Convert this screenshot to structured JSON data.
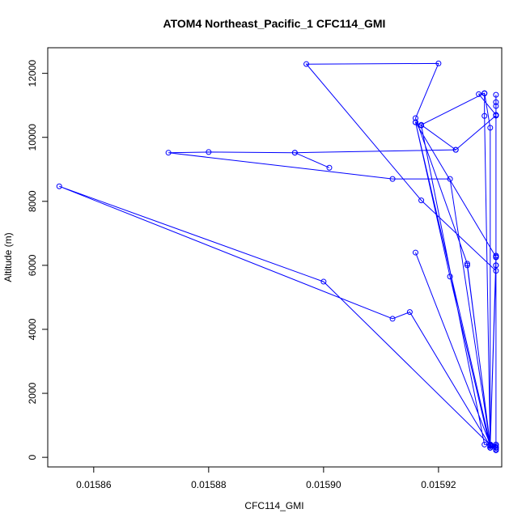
{
  "chart_data": {
    "type": "line",
    "title": "ATOM4 Northeast_Pacific_1 CFC114_GMI",
    "xlabel": "CFC114_GMI",
    "ylabel": "Altitude (m)",
    "xlim": [
      0.015852,
      0.015931
    ],
    "ylim": [
      -300,
      12800
    ],
    "x_ticks": [
      0.01586,
      0.01588,
      0.0159,
      0.01592
    ],
    "x_tick_labels": [
      "0.01586",
      "0.01588",
      "0.01590",
      "0.01592"
    ],
    "y_ticks": [
      0,
      2000,
      4000,
      6000,
      8000,
      10000,
      12000
    ],
    "y_tick_labels": [
      "0",
      "2000",
      "4000",
      "6000",
      "8000",
      "10000",
      "12000"
    ],
    "grid": false,
    "legend": "none",
    "color": "#0000ff",
    "marker": "open-circle",
    "series": [
      {
        "x": [
          0.01593,
          0.01593,
          0.015929,
          0.015915,
          0.015912,
          0.015854,
          0.0159,
          0.015929,
          0.01593,
          0.01593,
          0.015917,
          0.015897,
          0.01592,
          0.015916,
          0.015925,
          0.015929,
          0.01593,
          0.015929,
          0.015929,
          0.015922,
          0.015916,
          0.01593,
          0.01593,
          0.015929,
          0.015916,
          0.015929,
          0.015929,
          0.015928,
          0.015917,
          0.015923,
          0.01593,
          0.01593,
          0.01593,
          0.01593,
          0.01593,
          0.01593,
          0.01593,
          0.01593,
          0.01593,
          0.01593,
          0.01593,
          0.01593,
          0.015929,
          0.015928,
          0.015928,
          0.015927,
          0.01593,
          0.01593,
          0.01593,
          0.015929,
          0.015929,
          0.015925,
          0.015929,
          0.015929,
          0.015928,
          0.015917,
          0.015916,
          0.015929,
          0.015929,
          0.01593,
          0.015929,
          0.015922,
          0.015912,
          0.015873,
          0.01588,
          0.015895,
          0.015923,
          0.015895,
          0.015901
        ],
        "y": [
          220,
          250,
          350,
          4540,
          4330,
          8470,
          5490,
          380,
          6250,
          5830,
          8030,
          12290,
          12310,
          10600,
          6050,
          350,
          350,
          300,
          300,
          5650,
          10470,
          6260,
          6000,
          400,
          6400,
          400,
          10300,
          11380,
          10390,
          9610,
          10680,
          10980,
          11330,
          11100,
          10700,
          10680,
          6300,
          300,
          300,
          300,
          300,
          400,
          300,
          10670,
          11370,
          11350,
          10700,
          6300,
          6000,
          400,
          400,
          6000,
          400,
          400,
          400,
          10370,
          10470,
          400,
          300,
          400,
          400,
          8700,
          8700,
          9520,
          9540,
          9520,
          9610,
          9520,
          9050
        ]
      }
    ]
  }
}
